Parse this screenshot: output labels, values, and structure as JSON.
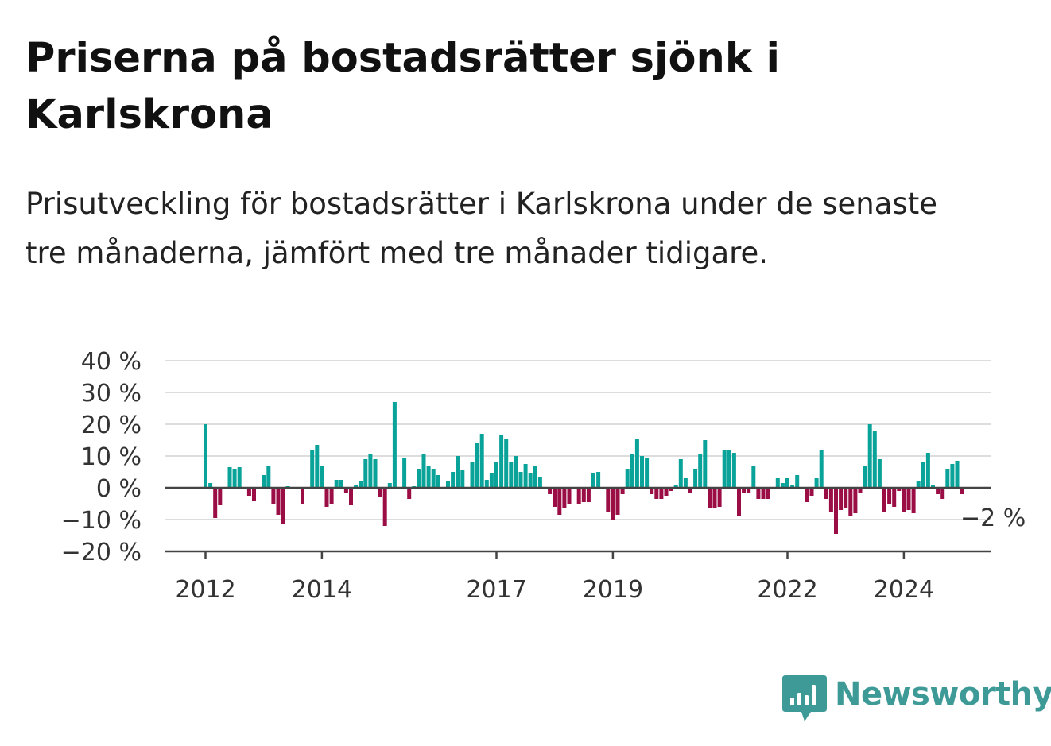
{
  "title": "Priserna på bostadsrätter sjönk i Karlskrona",
  "subtitle": "Prisutveckling för bostadsrätter i Karlskrona under de senaste tre månaderna, jämfört med tre månader tidigare.",
  "brand": {
    "name": "Newsworthy",
    "icon": "newsworthy-logo-icon"
  },
  "chart_data": {
    "type": "bar",
    "title": "Priserna på bostadsrätter sjönk i Karlskrona",
    "subtitle": "Prisutveckling för bostadsrätter i Karlskrona under de senaste tre månaderna, jämfört med tre månader tidigare.",
    "start": "2012-01",
    "ylim": [
      -20,
      40
    ],
    "yticks": [
      {
        "value": 40,
        "label": "40 %"
      },
      {
        "value": 30,
        "label": "30 %"
      },
      {
        "value": 20,
        "label": "20 %"
      },
      {
        "value": 10,
        "label": "10 %"
      },
      {
        "value": 0,
        "label": "0 %"
      },
      {
        "value": -10,
        "label": "−10 %"
      },
      {
        "value": -20,
        "label": "−20 %"
      }
    ],
    "xticks": [
      {
        "date": "2012-01",
        "label": "2012"
      },
      {
        "date": "2014-01",
        "label": "2014"
      },
      {
        "date": "2017-01",
        "label": "2017"
      },
      {
        "date": "2019-01",
        "label": "2019"
      },
      {
        "date": "2022-01",
        "label": "2022"
      },
      {
        "date": "2024-01",
        "label": "2024"
      }
    ],
    "grid": true,
    "legend": "none",
    "colors": {
      "positive": "#0aa39a",
      "negative": "#9b0d45",
      "grid": "#dddddd",
      "axis": "#444444"
    },
    "last_value_label": "−2 %",
    "values": [
      20,
      1.5,
      -9.5,
      -5.5,
      0,
      6.5,
      6,
      6.5,
      0,
      -2.5,
      -4,
      0,
      4,
      7,
      -5,
      -8.5,
      -11.5,
      0.5,
      0,
      0,
      -5,
      0,
      12,
      13.5,
      7,
      -6,
      -5,
      2.5,
      2.5,
      -1.5,
      -5.5,
      1,
      2,
      9,
      10.5,
      9,
      -3,
      -12,
      1.5,
      27,
      0,
      9.5,
      -3.5,
      0.5,
      6,
      10.5,
      7,
      6,
      4,
      0,
      2,
      5,
      10,
      5.5,
      0,
      8,
      14,
      17,
      2.5,
      4.5,
      8,
      16.5,
      15.5,
      8,
      10,
      5,
      7.5,
      4.5,
      7,
      3.5,
      0,
      -2,
      -6,
      -8.5,
      -6.5,
      -5,
      0,
      -5,
      -4.5,
      -4.5,
      4.5,
      5,
      0,
      -7.5,
      -10,
      -8.5,
      -2,
      6,
      10.5,
      15.5,
      10,
      9.5,
      -2,
      -3.5,
      -3.5,
      -2.5,
      -1,
      1,
      9,
      3,
      -1.5,
      6,
      10.5,
      15,
      -6.5,
      -6.5,
      -6,
      12,
      12,
      11,
      -9,
      -1.5,
      -1.5,
      7,
      -3.5,
      -3.5,
      -3.5,
      0,
      3,
      1.5,
      3,
      1,
      4,
      0,
      -4.5,
      -2.5,
      3,
      12,
      -3.5,
      -7.5,
      -14.5,
      -7,
      -6.5,
      -9,
      -8,
      -1.5,
      7,
      20,
      18,
      9,
      -7.5,
      -5,
      -6,
      -1,
      -7.5,
      -7,
      -8,
      2,
      8,
      11,
      1,
      -2,
      -3.5,
      6,
      7.5,
      8.5,
      -2
    ]
  }
}
